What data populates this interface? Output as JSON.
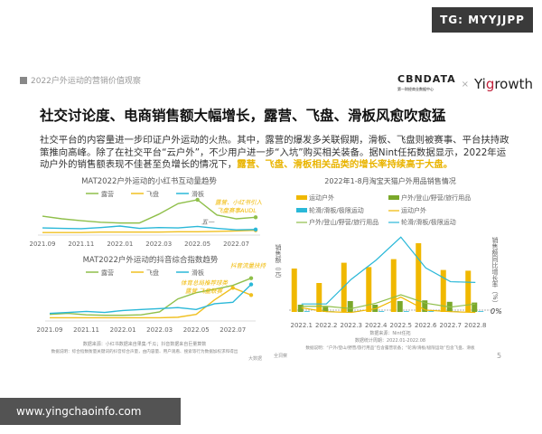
{
  "watermark_tg": "TG: MYYJJPP",
  "header": {
    "section": "2022户外运动的营销价值观察",
    "logo_left": "CBNDATA",
    "logo_left_sub": "第一财经商业数据中心",
    "logo_sep": "×",
    "logo_right": "Yigrowth"
  },
  "title": "社交讨论度、电商销售额大幅增长，露营、飞盘、滑板风愈吹愈猛",
  "paragraph": {
    "text": "社交平台的内容量进一步印证户外运动的火热。其中，露营的爆发多关联假期，滑板、飞盘则被赛事、平台扶持政策推向高峰。除了在社交平台“云户外”，不少用户进一步“入坑”购买相关装备。据Nint任拓数据显示，2022年运动户外的销售额表现不佳甚至负增长的情况下，",
    "highlight": "露营、飞盘、滑板相关品类的增长率持续高于大盘。"
  },
  "colors": {
    "camping": "#8fbf4a",
    "frisbee": "#f0c020",
    "skateboard": "#2ab8d8",
    "bar_yellow": "#f0b800",
    "bar_green": "#7aa82a",
    "bar_blue": "#2ab8d8",
    "annotation": "#f0b800"
  },
  "chart_data": [
    {
      "type": "line",
      "title": "MAT2022户外运动的小红书互动量趋势",
      "x": [
        "2021.09",
        "2021.10",
        "2021.11",
        "2021.12",
        "2022.01",
        "2022.02",
        "2022.03",
        "2022.04",
        "2022.05",
        "2022.06",
        "2022.07",
        "2022.08"
      ],
      "tick_labels": [
        "2021.09",
        "2021.11",
        "2022.01",
        "2022.03",
        "2022.05",
        "2022.07"
      ],
      "series": [
        {
          "name": "露营",
          "values": [
            45,
            38,
            33,
            29,
            27,
            27,
            50,
            78,
            88,
            48,
            38,
            42
          ]
        },
        {
          "name": "飞盘",
          "values": [
            2,
            2,
            2,
            3,
            3,
            3,
            3,
            4,
            4,
            5,
            6,
            8
          ]
        },
        {
          "name": "滑板",
          "values": [
            14,
            13,
            12,
            15,
            19,
            13,
            15,
            14,
            18,
            13,
            9,
            10
          ]
        }
      ],
      "annotations": [
        "五一",
        "露营、小红书引入",
        "飞盘赛事AUDL"
      ],
      "legend": "top",
      "grid": false
    },
    {
      "type": "line",
      "title": "MAT2022户外运动的抖音综合指数趋势",
      "x": [
        "2021.09",
        "2021.10",
        "2021.11",
        "2021.12",
        "2022.01",
        "2022.02",
        "2022.03",
        "2022.04",
        "2022.05",
        "2022.06",
        "2022.07",
        "2022.08"
      ],
      "tick_labels": [
        "2021.09",
        "2021.11",
        "2022.01",
        "2022.03",
        "2022.05",
        "2022.07"
      ],
      "series": [
        {
          "name": "露营",
          "values": [
            10,
            12,
            9,
            8,
            8,
            9,
            15,
            42,
            55,
            62,
            70,
            85
          ]
        },
        {
          "name": "飞盘",
          "values": [
            3,
            3,
            3,
            3,
            3,
            3,
            3,
            4,
            10,
            40,
            65,
            50
          ]
        },
        {
          "name": "滑板",
          "values": [
            12,
            14,
            16,
            14,
            18,
            20,
            22,
            24,
            20,
            32,
            35,
            72
          ]
        }
      ],
      "annotations": [
        "抖音流量扶持",
        "体育总局推荐球类",
        "露营 飞盘联赛"
      ],
      "legend": "top",
      "grid": false,
      "source": "数据来源：小红书数据来自果集·千瓜；抖音数据来自巨量算数",
      "note": "数据说明：综合指数衡量关键词的抖音综合声量，由内容量、用户观看、搜索等行为数据加权求和得出",
      "footer": "大数据"
    },
    {
      "type": "bar",
      "title": "2022年1-8月淘宝天猫户外用品销售情况",
      "categories": [
        "2022.1",
        "2022.2",
        "2022.3",
        "2022.4",
        "2022.5",
        "2022.6",
        "2022.7",
        "2022.8"
      ],
      "ylabel": "销售额（元）",
      "y2label": "销售额同比增长率（%）",
      "y2_zero_label": "0%",
      "series": [
        {
          "name": "运动户外",
          "kind": "bar",
          "values": [
            60,
            40,
            68,
            62,
            73,
            95,
            58,
            57
          ]
        },
        {
          "name": "户外/登山/野营/旅行用品",
          "kind": "bar",
          "values": [
            10,
            7,
            15,
            10,
            15,
            16,
            14,
            13
          ]
        },
        {
          "name": "轮滑/滑板/极限运动",
          "kind": "bar",
          "values": [
            1,
            1,
            1,
            1,
            1,
            1,
            1,
            1
          ]
        },
        {
          "name": "运动户外",
          "kind": "line",
          "values": [
            3,
            -2,
            -3,
            2,
            17,
            0,
            -2,
            -3
          ]
        },
        {
          "name": "户外/登山/野营/旅行用品",
          "kind": "line",
          "values": [
            5,
            5,
            2,
            9,
            20,
            9,
            4,
            8
          ]
        },
        {
          "name": "轮滑/滑板/极限运动",
          "kind": "line",
          "values": [
            8,
            8,
            40,
            65,
            95,
            55,
            37,
            36
          ]
        }
      ],
      "legend": "top",
      "grid": false,
      "source": "数据来源：Nint任拓",
      "period": "数据统计周期：2022.01-2022.08",
      "note": "数据说明：“户外/登山/野营/旅行用品”包含露营装备；“轮滑/滑板/极限运动”包含飞盘、滑板",
      "footer": "全洞察",
      "page": "5"
    }
  ],
  "url_banner": "www.yingchaoinfo.com"
}
